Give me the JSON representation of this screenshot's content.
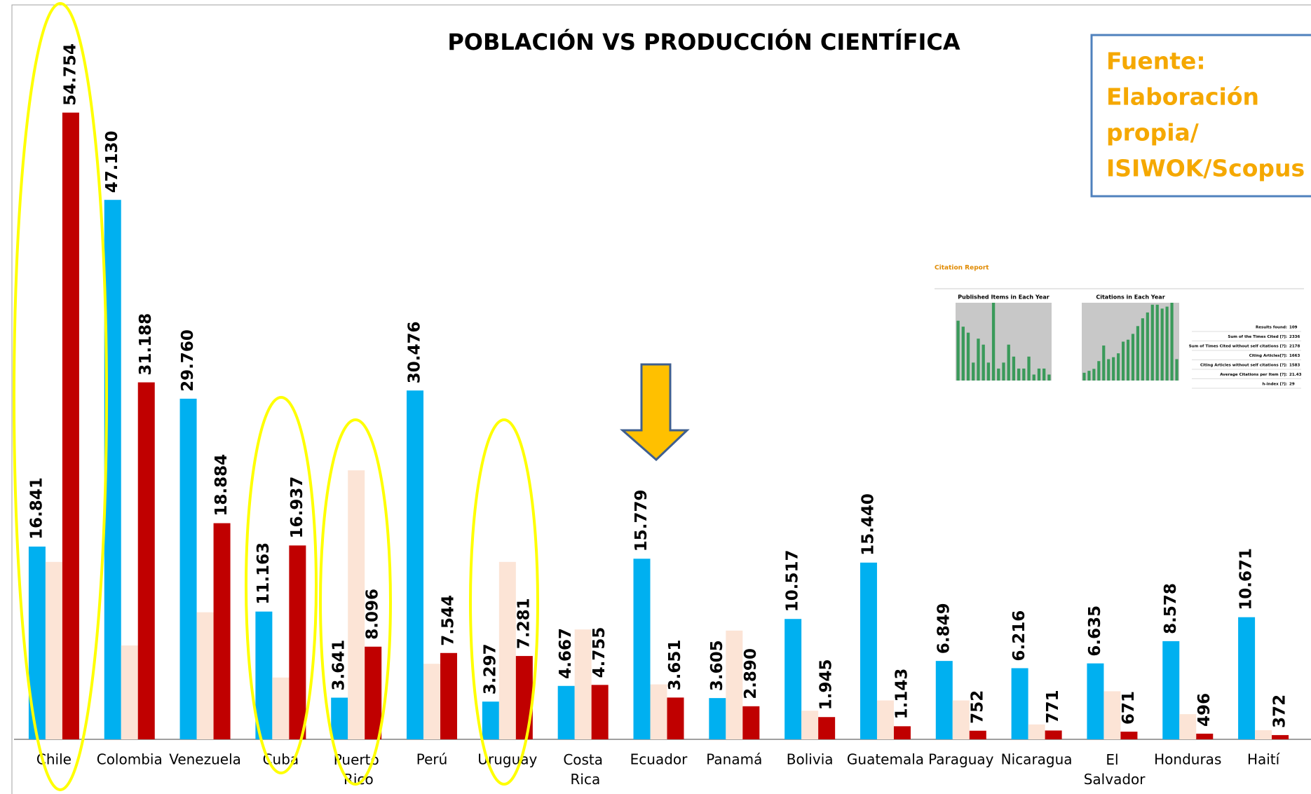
{
  "chart_data": {
    "type": "bar",
    "title": "POBLACIÓN VS PRODUCCIÓN CIENTÍFICA",
    "categories": [
      "Chile",
      "Colombia",
      "Venezuela",
      "Cuba",
      "Puerto Rico",
      "Perú",
      "Uruguay",
      "Costa Rica",
      "Ecuador",
      "Panamá",
      "Bolivia",
      "Guatemala",
      "Paraguay",
      "Nicaragua",
      "El Salvador",
      "Honduras",
      "Haití"
    ],
    "series": [
      {
        "color": "#00b0f0",
        "values": [
          16841,
          47130,
          29760,
          11163,
          3641,
          30476,
          3297,
          4667,
          15779,
          3605,
          10517,
          15440,
          6849,
          6216,
          6635,
          8578,
          10671
        ],
        "value_labels": [
          "16.841",
          "47.130",
          "29.760",
          "11.163",
          "3.641",
          "30.476",
          "3.297",
          "4.667",
          "15.779",
          "3.605",
          "10.517",
          "15.440",
          "6.849",
          "6.216",
          "6.635",
          "8.578",
          "10.671"
        ]
      },
      {
        "color": "#fce4d6",
        "values": [
          15500,
          8200,
          11100,
          5400,
          23500,
          6600,
          15500,
          9600,
          4800,
          9500,
          2500,
          3400,
          3400,
          1300,
          4200,
          2200,
          800
        ]
      },
      {
        "color": "#c00000",
        "values": [
          54754,
          31188,
          18884,
          16937,
          8096,
          7544,
          7281,
          4755,
          3651,
          2890,
          1945,
          1143,
          752,
          771,
          671,
          496,
          372
        ],
        "value_labels": [
          "54.754",
          "31.188",
          "18.884",
          "16.937",
          "8.096",
          "7.544",
          "7.281",
          "4.755",
          "3.651",
          "2.890",
          "1.945",
          "1.143",
          "752",
          "771",
          "671",
          "496",
          "372"
        ]
      }
    ],
    "ylim": [
      0,
      60000
    ],
    "source_note": [
      "Fuente:",
      "Elaboración",
      "propia/",
      "ISIWOK/Scopus"
    ]
  },
  "inset": {
    "title": "Citation Report",
    "charts": [
      {
        "title": "Published Items in Each Year",
        "ylim": [
          0,
          13
        ],
        "color": "#3a9a5a",
        "values": [
          10,
          9,
          8,
          3,
          7,
          6,
          3,
          13,
          2,
          3,
          6,
          4,
          2,
          2,
          4,
          1,
          2,
          2,
          1
        ]
      },
      {
        "title": "Citations in Each Year",
        "ylim": [
          0,
          200
        ],
        "color": "#3a9a5a",
        "values": [
          20,
          25,
          30,
          50,
          90,
          55,
          60,
          70,
          100,
          105,
          120,
          140,
          160,
          175,
          195,
          195,
          185,
          190,
          200,
          55
        ]
      }
    ],
    "stats": [
      [
        "Results found:",
        "109"
      ],
      [
        "Sum of the Times Cited [?]:",
        "2336"
      ],
      [
        "Sum of Times Cited without self citations [?]:",
        "2178"
      ],
      [
        "Citing Articles[?]:",
        "1663"
      ],
      [
        "Citing Articles without self citations [?]:",
        "1583"
      ],
      [
        "Average Citations per Item [?]:",
        "21.43"
      ],
      [
        "h-index [?]:",
        "29"
      ]
    ]
  }
}
